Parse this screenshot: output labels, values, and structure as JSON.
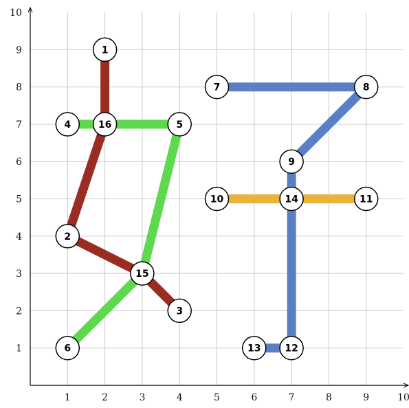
{
  "chart_data": {
    "type": "network",
    "xlim": [
      0,
      10
    ],
    "ylim": [
      0,
      10
    ],
    "grid": true,
    "x_ticks": [
      "1",
      "2",
      "3",
      "4",
      "5",
      "6",
      "7",
      "8",
      "9",
      "10"
    ],
    "y_ticks": [
      "1",
      "2",
      "3",
      "4",
      "5",
      "6",
      "7",
      "8",
      "9",
      "10"
    ],
    "nodes": [
      {
        "id": "1",
        "x": 2,
        "y": 9
      },
      {
        "id": "2",
        "x": 1,
        "y": 4
      },
      {
        "id": "3",
        "x": 4,
        "y": 2
      },
      {
        "id": "4",
        "x": 1,
        "y": 7
      },
      {
        "id": "5",
        "x": 4,
        "y": 7
      },
      {
        "id": "6",
        "x": 1,
        "y": 1
      },
      {
        "id": "7",
        "x": 5,
        "y": 8
      },
      {
        "id": "8",
        "x": 9,
        "y": 8
      },
      {
        "id": "9",
        "x": 7,
        "y": 6
      },
      {
        "id": "10",
        "x": 5,
        "y": 5
      },
      {
        "id": "11",
        "x": 9,
        "y": 5
      },
      {
        "id": "12",
        "x": 7,
        "y": 1
      },
      {
        "id": "13",
        "x": 6,
        "y": 1
      },
      {
        "id": "14",
        "x": 7,
        "y": 5
      },
      {
        "id": "15",
        "x": 3,
        "y": 3
      },
      {
        "id": "16",
        "x": 2,
        "y": 7
      }
    ],
    "lines": [
      {
        "color": "#992d22",
        "path": [
          "1",
          "16",
          "2",
          "15",
          "3"
        ]
      },
      {
        "color": "#5ed94e",
        "path": [
          "4",
          "16",
          "5",
          "15",
          "6"
        ]
      },
      {
        "color": "#5a7fc4",
        "path": [
          "7",
          "8",
          "9",
          "14",
          "12",
          "13"
        ]
      },
      {
        "color": "#e8b23b",
        "path": [
          "10",
          "14",
          "11"
        ]
      }
    ]
  }
}
